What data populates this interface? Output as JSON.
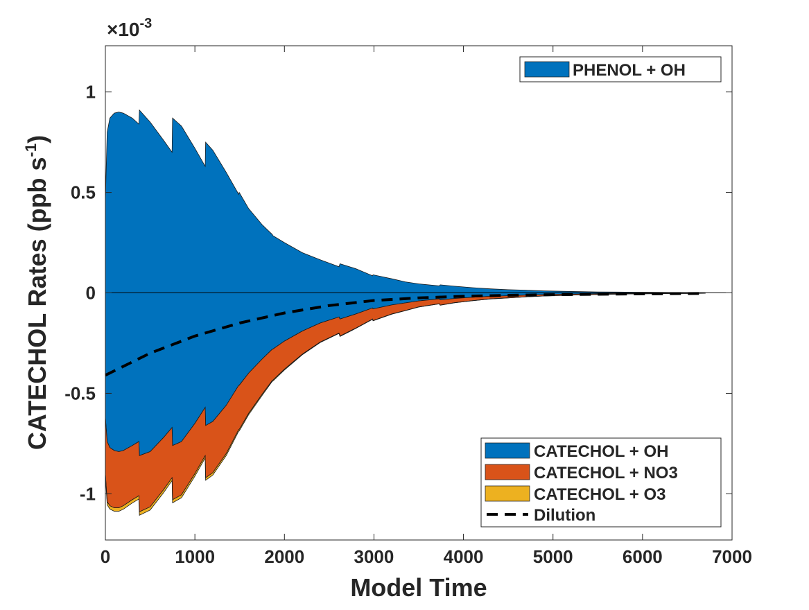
{
  "chart_data": {
    "type": "area",
    "xlabel": "Model Time",
    "ylabel_main": "CATECHOL Rates (ppb s",
    "ylabel_sup": "-1",
    "ylabel_close": ")",
    "exponent_base": "×10",
    "exponent_power": "-3",
    "xlim": [
      0,
      7000
    ],
    "ylim": [
      -1.23,
      1.23
    ],
    "x_ticks": [
      0,
      1000,
      2000,
      3000,
      4000,
      5000,
      6000,
      7000
    ],
    "x_tick_labels": [
      "0",
      "1000",
      "2000",
      "3000",
      "4000",
      "5000",
      "6000",
      "7000"
    ],
    "y_ticks": [
      -1,
      -0.5,
      0,
      0.5,
      1
    ],
    "y_tick_labels": [
      "-1",
      "-0.5",
      "0",
      "0.5",
      "1"
    ],
    "grid": false,
    "legend_positions": [
      "top-right",
      "bottom-right"
    ],
    "x": [
      0,
      20,
      50,
      100,
      150,
      200,
      300,
      375,
      380,
      500,
      650,
      745,
      750,
      850,
      1000,
      1115,
      1120,
      1200,
      1350,
      1490,
      1495,
      1600,
      1750,
      1865,
      1870,
      2000,
      2200,
      2400,
      2610,
      2620,
      2800,
      2985,
      2990,
      3200,
      3350,
      3500,
      3730,
      3740,
      3900,
      4100,
      4300,
      4500,
      4700,
      4900,
      5100,
      5300,
      5500,
      5700,
      5900,
      6100,
      6300,
      6500,
      6700
    ],
    "production": [
      {
        "name": "PHENOL + OH",
        "color": "#0072BD",
        "values": [
          0.46,
          0.8,
          0.87,
          0.895,
          0.9,
          0.895,
          0.87,
          0.84,
          0.91,
          0.85,
          0.76,
          0.7,
          0.87,
          0.83,
          0.72,
          0.63,
          0.75,
          0.71,
          0.6,
          0.49,
          0.5,
          0.42,
          0.34,
          0.29,
          0.285,
          0.25,
          0.2,
          0.165,
          0.13,
          0.145,
          0.12,
          0.085,
          0.09,
          0.07,
          0.055,
          0.045,
          0.035,
          0.04,
          0.033,
          0.026,
          0.02,
          0.016,
          0.013,
          0.01,
          0.008,
          0.0065,
          0.005,
          0.004,
          0.0033,
          0.0027,
          0.0022,
          0.0018,
          0.0012
        ]
      }
    ],
    "loss": [
      {
        "name": "CATECHOL + OH",
        "color": "#0072BD",
        "values": [
          -0.62,
          -0.74,
          -0.77,
          -0.785,
          -0.79,
          -0.785,
          -0.76,
          -0.74,
          -0.81,
          -0.79,
          -0.72,
          -0.67,
          -0.76,
          -0.74,
          -0.65,
          -0.57,
          -0.66,
          -0.64,
          -0.56,
          -0.46,
          -0.46,
          -0.4,
          -0.33,
          -0.28,
          -0.28,
          -0.24,
          -0.19,
          -0.15,
          -0.12,
          -0.13,
          -0.105,
          -0.075,
          -0.08,
          -0.06,
          -0.05,
          -0.04,
          -0.03,
          -0.035,
          -0.028,
          -0.022,
          -0.017,
          -0.014,
          -0.011,
          -0.0085,
          -0.007,
          -0.0055,
          -0.0043,
          -0.0034,
          -0.0027,
          -0.0022,
          -0.0018,
          -0.0015,
          -0.001
        ]
      },
      {
        "name": "CATECHOL + NO3",
        "color": "#D95319",
        "values": [
          -0.28,
          -0.3,
          -0.29,
          -0.285,
          -0.28,
          -0.275,
          -0.27,
          -0.27,
          -0.28,
          -0.275,
          -0.26,
          -0.25,
          -0.27,
          -0.265,
          -0.25,
          -0.24,
          -0.26,
          -0.255,
          -0.24,
          -0.22,
          -0.22,
          -0.2,
          -0.175,
          -0.155,
          -0.155,
          -0.14,
          -0.115,
          -0.095,
          -0.08,
          -0.085,
          -0.07,
          -0.055,
          -0.058,
          -0.045,
          -0.038,
          -0.03,
          -0.024,
          -0.026,
          -0.021,
          -0.017,
          -0.013,
          -0.011,
          -0.0085,
          -0.007,
          -0.0055,
          -0.0045,
          -0.0036,
          -0.003,
          -0.0024,
          -0.002,
          -0.0016,
          -0.0013,
          -0.001
        ]
      },
      {
        "name": "CATECHOL + O3",
        "color": "#EDB120",
        "values": [
          -0.01,
          -0.015,
          -0.016,
          -0.017,
          -0.017,
          -0.017,
          -0.016,
          -0.016,
          -0.017,
          -0.016,
          -0.015,
          -0.014,
          -0.015,
          -0.015,
          -0.013,
          -0.012,
          -0.013,
          -0.012,
          -0.01,
          -0.008,
          -0.008,
          -0.007,
          -0.006,
          -0.005,
          -0.005,
          -0.004,
          -0.003,
          -0.0025,
          -0.002,
          -0.002,
          -0.0017,
          -0.0013,
          -0.0013,
          -0.001,
          -0.0008,
          -0.0007,
          -0.0005,
          -0.0006,
          -0.0005,
          -0.0004,
          -0.0003,
          -0.00025,
          -0.0002,
          -0.00015,
          -0.00012,
          -0.0001,
          -8e-05,
          -6e-05,
          -5e-05,
          -4e-05,
          -3e-05,
          -3e-05,
          -2e-05
        ]
      }
    ],
    "dilution": {
      "name": "Dilution",
      "x": [
        0,
        500,
        1000,
        1500,
        2000,
        2500,
        3000,
        3500,
        4000,
        4500,
        5000,
        5500,
        6000,
        6500,
        6700
      ],
      "values": [
        -0.41,
        -0.3,
        -0.215,
        -0.15,
        -0.1,
        -0.063,
        -0.038,
        -0.025,
        -0.017,
        -0.012,
        -0.009,
        -0.007,
        -0.005,
        -0.0035,
        -0.003
      ]
    },
    "legend_top": [
      "PHENOL + OH"
    ],
    "legend_bottom": [
      "CATECHOL + OH",
      "CATECHOL + NO3",
      "CATECHOL + O3",
      "Dilution"
    ]
  }
}
